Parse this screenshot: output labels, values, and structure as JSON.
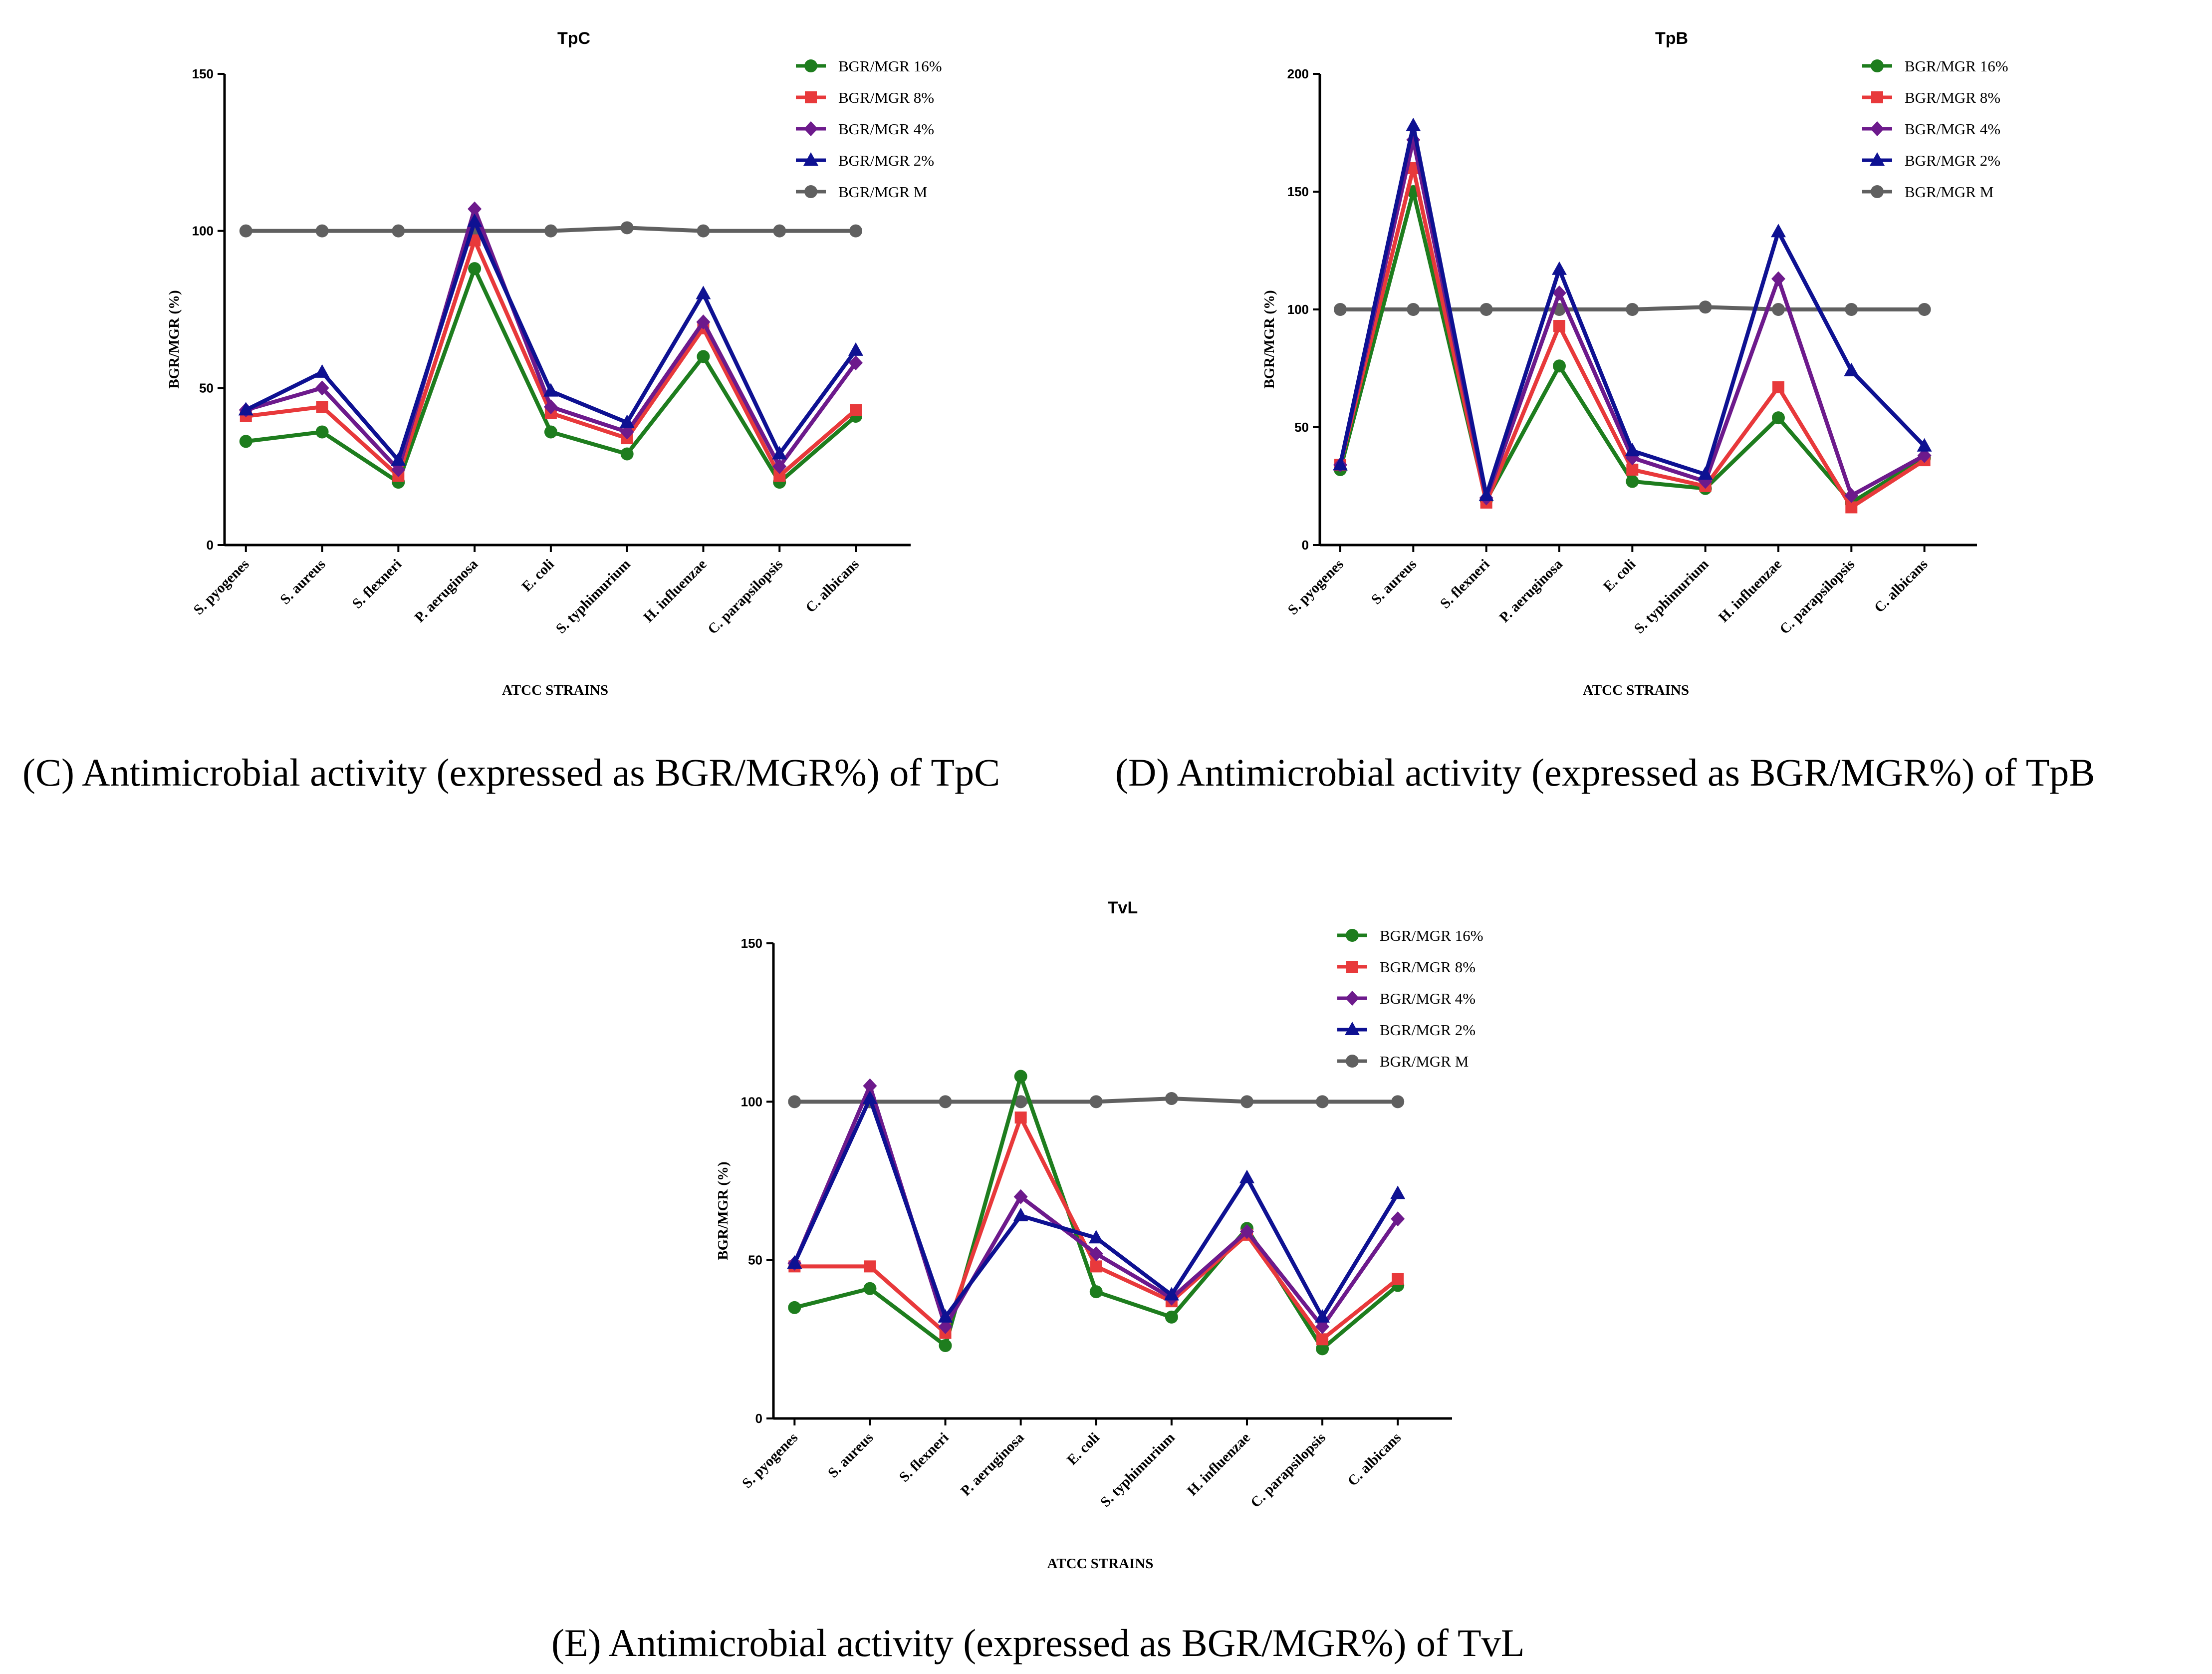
{
  "captions": {
    "c": "(C) Antimicrobial activity (expressed as BGR/MGR%) of TpC",
    "d": "(D) Antimicrobial activity (expressed as BGR/MGR%) of TpB",
    "e": "(E) Antimicrobial activity (expressed as BGR/MGR%) of TvL"
  },
  "series_styles": [
    {
      "name": "BGR/MGR 16%",
      "color": "#1e7d1e",
      "marker": "circle"
    },
    {
      "name": "BGR/MGR 8%",
      "color": "#e8393b",
      "marker": "square"
    },
    {
      "name": "BGR/MGR 4%",
      "color": "#6d1a8c",
      "marker": "diamond"
    },
    {
      "name": "BGR/MGR 2%",
      "color": "#0e1192",
      "marker": "triangle"
    },
    {
      "name": "BGR/MGR M",
      "color": "#606060",
      "marker": "circle"
    }
  ],
  "chart_data": [
    {
      "id": "tpc",
      "type": "line",
      "title": "TpC",
      "xlabel": "ATCC STRAINS",
      "ylabel": "BGR/MGR (%)",
      "ylim": [
        0,
        150
      ],
      "yticks": [
        0,
        50,
        100,
        150
      ],
      "legend_position": "top-right",
      "categories": [
        "S. pyogenes",
        "S. aureus",
        "S. flexneri",
        "P. aeruginosa",
        "E. coli",
        "S. typhimurium",
        "H. influenzae",
        "C. parapsilopsis",
        "C. albicans"
      ],
      "series": [
        {
          "name": "BGR/MGR 16%",
          "values": [
            33,
            36,
            20,
            88,
            36,
            29,
            60,
            20,
            41
          ]
        },
        {
          "name": "BGR/MGR 8%",
          "values": [
            41,
            44,
            22,
            97,
            42,
            34,
            69,
            22,
            43
          ]
        },
        {
          "name": "BGR/MGR 4%",
          "values": [
            43,
            50,
            24,
            107,
            44,
            36,
            71,
            25,
            58
          ]
        },
        {
          "name": "BGR/MGR 2%",
          "values": [
            43,
            55,
            27,
            103,
            49,
            39,
            80,
            29,
            62
          ]
        },
        {
          "name": "BGR/MGR M",
          "values": [
            100,
            100,
            100,
            100,
            100,
            101,
            100,
            100,
            100
          ]
        }
      ]
    },
    {
      "id": "tpb",
      "type": "line",
      "title": "TpB",
      "xlabel": "ATCC STRAINS",
      "ylabel": "BGR/MGR (%)",
      "ylim": [
        0,
        200
      ],
      "yticks": [
        0,
        50,
        100,
        150,
        200
      ],
      "legend_position": "top-right",
      "categories": [
        "S. pyogenes",
        "S. aureus",
        "S. flexneri",
        "P. aeruginosa",
        "E. coli",
        "S. typhimurium",
        "H. influenzae",
        "C. parapsilopsis",
        "C. albicans"
      ],
      "series": [
        {
          "name": "BGR/MGR 16%",
          "values": [
            32,
            150,
            19,
            76,
            27,
            24,
            54,
            18,
            37
          ]
        },
        {
          "name": "BGR/MGR 8%",
          "values": [
            34,
            160,
            18,
            93,
            32,
            25,
            67,
            16,
            36
          ]
        },
        {
          "name": "BGR/MGR 4%",
          "values": [
            34,
            172,
            20,
            107,
            37,
            27,
            113,
            21,
            38
          ]
        },
        {
          "name": "BGR/MGR 2%",
          "values": [
            34,
            178,
            21,
            117,
            40,
            30,
            133,
            74,
            42
          ]
        },
        {
          "name": "BGR/MGR M",
          "values": [
            100,
            100,
            100,
            100,
            100,
            101,
            100,
            100,
            100
          ]
        }
      ]
    },
    {
      "id": "tvl",
      "type": "line",
      "title": "TvL",
      "xlabel": "ATCC STRAINS",
      "ylabel": "BGR/MGR (%)",
      "ylim": [
        0,
        150
      ],
      "yticks": [
        0,
        50,
        100,
        150
      ],
      "legend_position": "top-right",
      "categories": [
        "S. pyogenes",
        "S. aureus",
        "S. flexneri",
        "P. aeruginosa",
        "E. coli",
        "S. typhimurium",
        "H. influenzae",
        "C. parapsilopsis",
        "C. albicans"
      ],
      "series": [
        {
          "name": "BGR/MGR 16%",
          "values": [
            35,
            41,
            23,
            108,
            40,
            32,
            60,
            22,
            42
          ]
        },
        {
          "name": "BGR/MGR 8%",
          "values": [
            48,
            48,
            27,
            95,
            48,
            37,
            58,
            25,
            44
          ]
        },
        {
          "name": "BGR/MGR 4%",
          "values": [
            49,
            105,
            29,
            70,
            52,
            38,
            59,
            29,
            63
          ]
        },
        {
          "name": "BGR/MGR 2%",
          "values": [
            49,
            101,
            32,
            64,
            57,
            39,
            76,
            32,
            71
          ]
        },
        {
          "name": "BGR/MGR M",
          "values": [
            100,
            100,
            100,
            100,
            100,
            101,
            100,
            100,
            100
          ]
        }
      ]
    }
  ]
}
